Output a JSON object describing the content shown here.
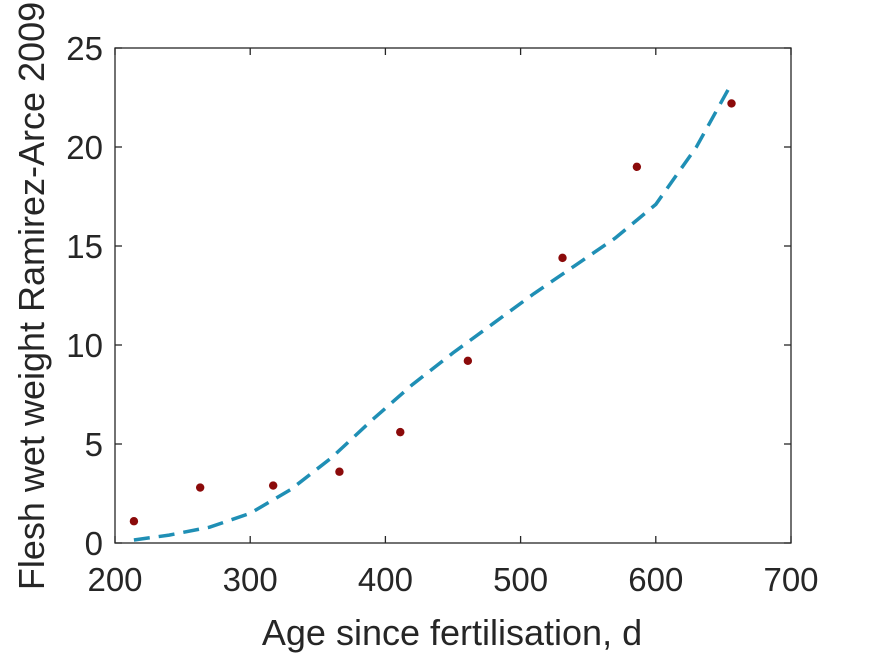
{
  "chart_data": {
    "type": "scatter",
    "title": "",
    "xlabel": "Age since fertilisation, d",
    "ylabel": "Flesh wet weight Ramirez-Arce 2009",
    "xlim": [
      200,
      700
    ],
    "ylim": [
      0,
      25
    ],
    "xticks": [
      200,
      300,
      400,
      500,
      600,
      700
    ],
    "yticks": [
      0,
      5,
      10,
      15,
      20,
      25
    ],
    "xtick_labels": [
      "200",
      "300",
      "400",
      "500",
      "600",
      "700"
    ],
    "ytick_labels": [
      "0",
      "5",
      "10",
      "15",
      "20",
      "25"
    ],
    "grid": false,
    "series": [
      {
        "kind": "points",
        "color": "#8b0a0a",
        "x": [
          214,
          263,
          317,
          366,
          411,
          461,
          531,
          586,
          656
        ],
        "y": [
          1.1,
          2.8,
          2.9,
          3.6,
          5.6,
          9.2,
          14.4,
          19.0,
          22.2
        ]
      },
      {
        "kind": "dashed-line",
        "color": "#1f8fb5",
        "x": [
          214,
          240,
          270,
          300,
          330,
          360,
          390,
          420,
          450,
          480,
          510,
          540,
          570,
          600,
          630,
          656
        ],
        "y": [
          0.15,
          0.4,
          0.8,
          1.5,
          2.7,
          4.3,
          6.2,
          8.0,
          9.6,
          11.1,
          12.6,
          14.0,
          15.4,
          17.1,
          20.0,
          23.2
        ]
      }
    ]
  }
}
